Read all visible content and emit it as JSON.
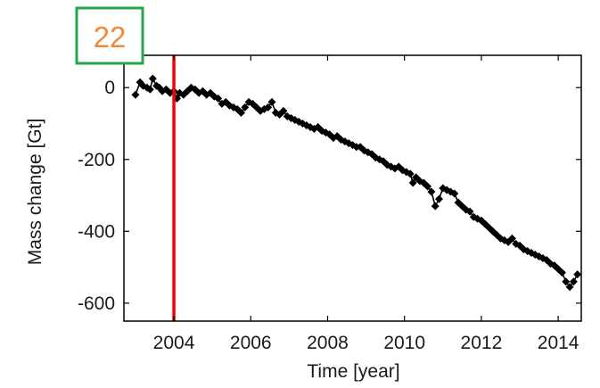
{
  "panel_label": "22",
  "colors": {
    "marker": "#000000",
    "marker_line": "#000000",
    "highlight_line": "#ff0000",
    "panel_label_text": "#ee8a3a",
    "panel_label_border": "#22a84a",
    "axes": "#000000"
  },
  "chart_data": {
    "type": "line",
    "xlabel": "Time [year]",
    "ylabel": "Mass change [Gt]",
    "xlim": [
      2002.7,
      2014.6
    ],
    "ylim": [
      -650,
      90
    ],
    "xticks": [
      2004,
      2006,
      2008,
      2010,
      2012,
      2014
    ],
    "yticks": [
      0,
      -200,
      -400,
      -600
    ],
    "grid": false,
    "marker": "diamond",
    "vertical_line": {
      "x": 2004.0,
      "color": "#ff0000"
    },
    "series": [
      {
        "x": [
          2003.0,
          2003.12,
          2003.2,
          2003.3,
          2003.38,
          2003.45,
          2003.55,
          2003.62,
          2003.7,
          2003.8,
          2003.9,
          2004.0,
          2004.08,
          2004.15,
          2004.25,
          2004.35,
          2004.45,
          2004.55,
          2004.65,
          2004.75,
          2004.85,
          2004.95,
          2005.05,
          2005.15,
          2005.25,
          2005.35,
          2005.45,
          2005.55,
          2005.65,
          2005.75,
          2005.85,
          2005.95,
          2006.05,
          2006.15,
          2006.25,
          2006.35,
          2006.45,
          2006.55,
          2006.65,
          2006.75,
          2006.85,
          2006.95,
          2007.05,
          2007.15,
          2007.25,
          2007.35,
          2007.45,
          2007.55,
          2007.65,
          2007.75,
          2007.85,
          2007.95,
          2008.05,
          2008.15,
          2008.25,
          2008.35,
          2008.45,
          2008.55,
          2008.65,
          2008.75,
          2008.85,
          2008.95,
          2009.05,
          2009.15,
          2009.25,
          2009.35,
          2009.45,
          2009.55,
          2009.65,
          2009.75,
          2009.85,
          2009.95,
          2010.05,
          2010.15,
          2010.22,
          2010.3,
          2010.4,
          2010.5,
          2010.6,
          2010.7,
          2010.8,
          2010.9,
          2011.0,
          2011.1,
          2011.2,
          2011.3,
          2011.4,
          2011.5,
          2011.6,
          2011.7,
          2011.8,
          2011.9,
          2012.0,
          2012.1,
          2012.2,
          2012.3,
          2012.4,
          2012.5,
          2012.6,
          2012.7,
          2012.8,
          2012.9,
          2013.0,
          2013.1,
          2013.2,
          2013.3,
          2013.4,
          2013.5,
          2013.6,
          2013.7,
          2013.8,
          2013.9,
          2014.0,
          2014.1,
          2014.2,
          2014.3,
          2014.4,
          2014.5
        ],
        "values": [
          -20,
          15,
          5,
          0,
          -5,
          25,
          5,
          0,
          -10,
          -5,
          -15,
          -10,
          -30,
          -15,
          -20,
          -10,
          0,
          -5,
          -15,
          -10,
          -20,
          -15,
          -25,
          -30,
          -45,
          -40,
          -50,
          -55,
          -60,
          -70,
          -55,
          -40,
          -45,
          -55,
          -65,
          -60,
          -55,
          -40,
          -70,
          -75,
          -65,
          -80,
          -85,
          -90,
          -95,
          -100,
          -105,
          -110,
          -115,
          -110,
          -120,
          -125,
          -130,
          -140,
          -135,
          -145,
          -150,
          -155,
          -160,
          -165,
          -165,
          -175,
          -180,
          -185,
          -195,
          -200,
          -205,
          -215,
          -220,
          -225,
          -220,
          -230,
          -235,
          -240,
          -265,
          -250,
          -260,
          -265,
          -275,
          -290,
          -330,
          -310,
          -280,
          -285,
          -290,
          -295,
          -320,
          -330,
          -340,
          -345,
          -360,
          -365,
          -370,
          -380,
          -390,
          -400,
          -410,
          -420,
          -425,
          -430,
          -420,
          -435,
          -440,
          -450,
          -455,
          -460,
          -465,
          -470,
          -475,
          -480,
          -490,
          -495,
          -505,
          -515,
          -540,
          -555,
          -540,
          -520
        ]
      }
    ]
  }
}
